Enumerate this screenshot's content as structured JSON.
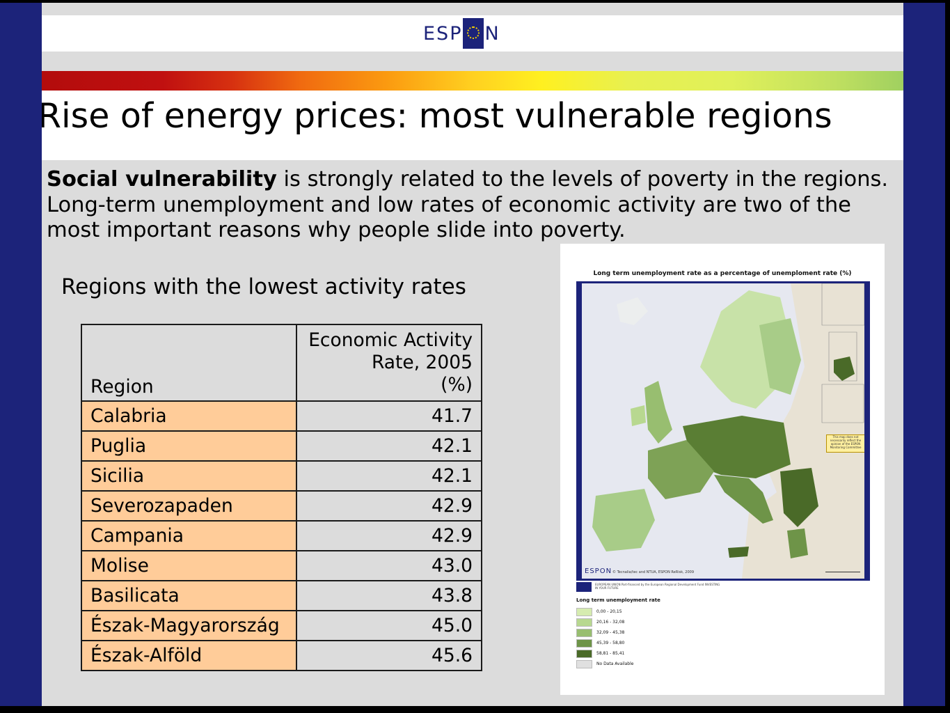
{
  "header": {
    "logo_text_left": "ESP",
    "logo_text_right": "N"
  },
  "title": "Rise of energy prices: most vulnerable regions",
  "intro": {
    "bold": "Social vulnerability",
    "rest": " is strongly related to the levels of poverty in the regions. Long-term unemployment and low rates of economic activity are two of the most important reasons why people slide into poverty."
  },
  "subtitle": "Regions with the lowest activity rates",
  "table": {
    "header_region": "Region",
    "header_value_lines": [
      "Economic Activity",
      "Rate, 2005",
      "(%)"
    ],
    "rows": [
      {
        "region": "Calabria",
        "value": "41.7"
      },
      {
        "region": "Puglia",
        "value": "42.1"
      },
      {
        "region": "Sicilia",
        "value": "42.1"
      },
      {
        "region": "Severozapaden",
        "value": "42.9"
      },
      {
        "region": "Campania",
        "value": "42.9"
      },
      {
        "region": "Molise",
        "value": "43.0"
      },
      {
        "region": "Basilicata",
        "value": "43.8"
      },
      {
        "region": "Észak-Magyarország",
        "value": "45.0"
      },
      {
        "region": "Észak-Alföld",
        "value": "45.6"
      }
    ]
  },
  "map": {
    "title": "Long term unemployment rate as a percentage of unemploment rate (%)",
    "credit": "© Tecnalia/tec and NTUA, ESPON ReRisk, 2009",
    "logo_text": "ESPON",
    "note": "This map does not necessarily reflect the opinion of the ESPON Monitoring Committee",
    "legend_title": "Long term unemployment rate",
    "legend": [
      {
        "label": "0,00 - 20,15",
        "color": "#d6ecb0"
      },
      {
        "label": "20,16 - 32,08",
        "color": "#b8d890"
      },
      {
        "label": "32,09 - 45,38",
        "color": "#98be70"
      },
      {
        "label": "45,39 - 58,80",
        "color": "#6e9448"
      },
      {
        "label": "58,81 - 85,41",
        "color": "#4a6a28"
      },
      {
        "label": "No Data Available",
        "color": "#e0e0e0"
      }
    ],
    "funding_text": "EUROPEAN UNION Part-financed by the European Regional Development Fund INVESTING IN YOUR FUTURE"
  }
}
